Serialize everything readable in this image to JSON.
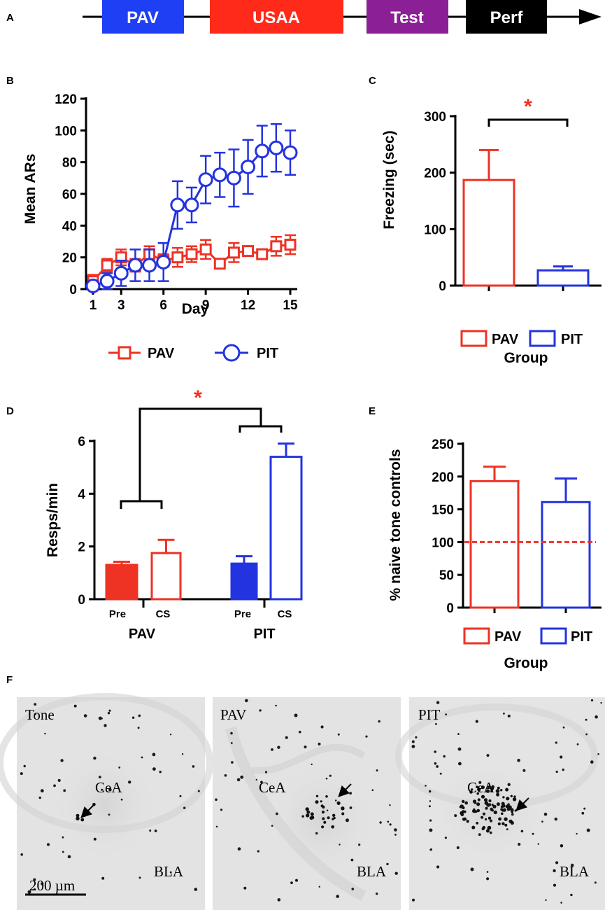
{
  "panel_letters": {
    "a": "A",
    "b": "B",
    "c": "C",
    "d": "D",
    "e": "E",
    "f": "F"
  },
  "timeline": {
    "stages": [
      {
        "label": "PAV",
        "color": "#1f3ff5"
      },
      {
        "label": "USAA",
        "color": "#ff2a1a"
      },
      {
        "label": "Test",
        "color": "#8b1f96"
      },
      {
        "label": "Perf",
        "color": "#000000"
      }
    ]
  },
  "colors": {
    "pav": "#ee3224",
    "pit": "#2333e0",
    "black": "#000000",
    "gray": "#e4e4e4"
  },
  "chart_data": [
    {
      "id": "B",
      "type": "line",
      "xlabel": "Day",
      "ylabel": "Mean ARs",
      "xlim": [
        1,
        15
      ],
      "ylim": [
        0,
        120
      ],
      "xticks": [
        1,
        3,
        6,
        9,
        12,
        15
      ],
      "yticks": [
        0,
        20,
        40,
        60,
        80,
        100,
        120
      ],
      "legend_position": "bottom",
      "series": [
        {
          "name": "PAV",
          "marker": "square",
          "color": "#ee3224",
          "x": [
            1,
            2,
            3,
            4,
            5,
            6,
            7,
            8,
            9,
            10,
            11,
            12,
            13,
            14,
            15
          ],
          "y": [
            5,
            15,
            20,
            15,
            22,
            18,
            20,
            22,
            25,
            16,
            23,
            24,
            22,
            27,
            28
          ],
          "err": [
            4,
            4,
            5,
            4,
            5,
            4,
            6,
            5,
            6,
            3,
            6,
            3,
            3,
            6,
            6
          ]
        },
        {
          "name": "PIT",
          "marker": "circle",
          "color": "#2333e0",
          "x": [
            1,
            2,
            3,
            4,
            5,
            6,
            7,
            8,
            9,
            10,
            11,
            12,
            13,
            14,
            15
          ],
          "y": [
            2,
            5,
            10,
            15,
            15,
            17,
            53,
            53,
            69,
            72,
            70,
            77,
            87,
            89,
            86
          ],
          "err": [
            3,
            5,
            8,
            10,
            10,
            12,
            15,
            11,
            15,
            14,
            18,
            17,
            16,
            15,
            14
          ]
        }
      ]
    },
    {
      "id": "C",
      "type": "bar",
      "title_annotation": "*",
      "xlabel": "Group",
      "ylabel": "Freezing (sec)",
      "ylim": [
        0,
        300
      ],
      "yticks": [
        0,
        100,
        200,
        300
      ],
      "legend_position": "bottom",
      "categories": [
        "PAV",
        "PIT"
      ],
      "values": [
        187,
        27
      ],
      "err": [
        53,
        7
      ],
      "colors": [
        "#ee3224",
        "#2333e0"
      ]
    },
    {
      "id": "D",
      "type": "bar",
      "title_annotation": "*",
      "ylabel": "Resps/min",
      "ylim": [
        0,
        6
      ],
      "yticks": [
        0,
        2,
        4,
        6
      ],
      "groups": [
        "PAV",
        "PIT"
      ],
      "categories": [
        "Pre",
        "CS",
        "Pre",
        "CS"
      ],
      "values": [
        1.3,
        1.75,
        1.35,
        5.4
      ],
      "err": [
        0.12,
        0.5,
        0.28,
        0.5
      ],
      "fills": [
        "filled",
        "open",
        "filled",
        "open"
      ],
      "colors": [
        "#ee3224",
        "#ee3224",
        "#2333e0",
        "#2333e0"
      ]
    },
    {
      "id": "E",
      "type": "bar",
      "xlabel": "Group",
      "ylabel": "% naive tone controls",
      "ylim": [
        0,
        250
      ],
      "yticks": [
        0,
        50,
        100,
        150,
        200,
        250
      ],
      "reference_line": 100,
      "legend_position": "bottom",
      "categories": [
        "PAV",
        "PIT"
      ],
      "values": [
        193,
        161
      ],
      "err": [
        22,
        36
      ],
      "colors": [
        "#ee3224",
        "#2333e0"
      ]
    }
  ],
  "micrographs": [
    {
      "name": "Tone",
      "cea": "CeA",
      "bla": "BLA"
    },
    {
      "name": "PAV",
      "cea": "CeA",
      "bla": "BLA"
    },
    {
      "name": "PIT",
      "cea": "CeA",
      "bla": "BLA"
    }
  ],
  "scale_bar": "200 µm"
}
